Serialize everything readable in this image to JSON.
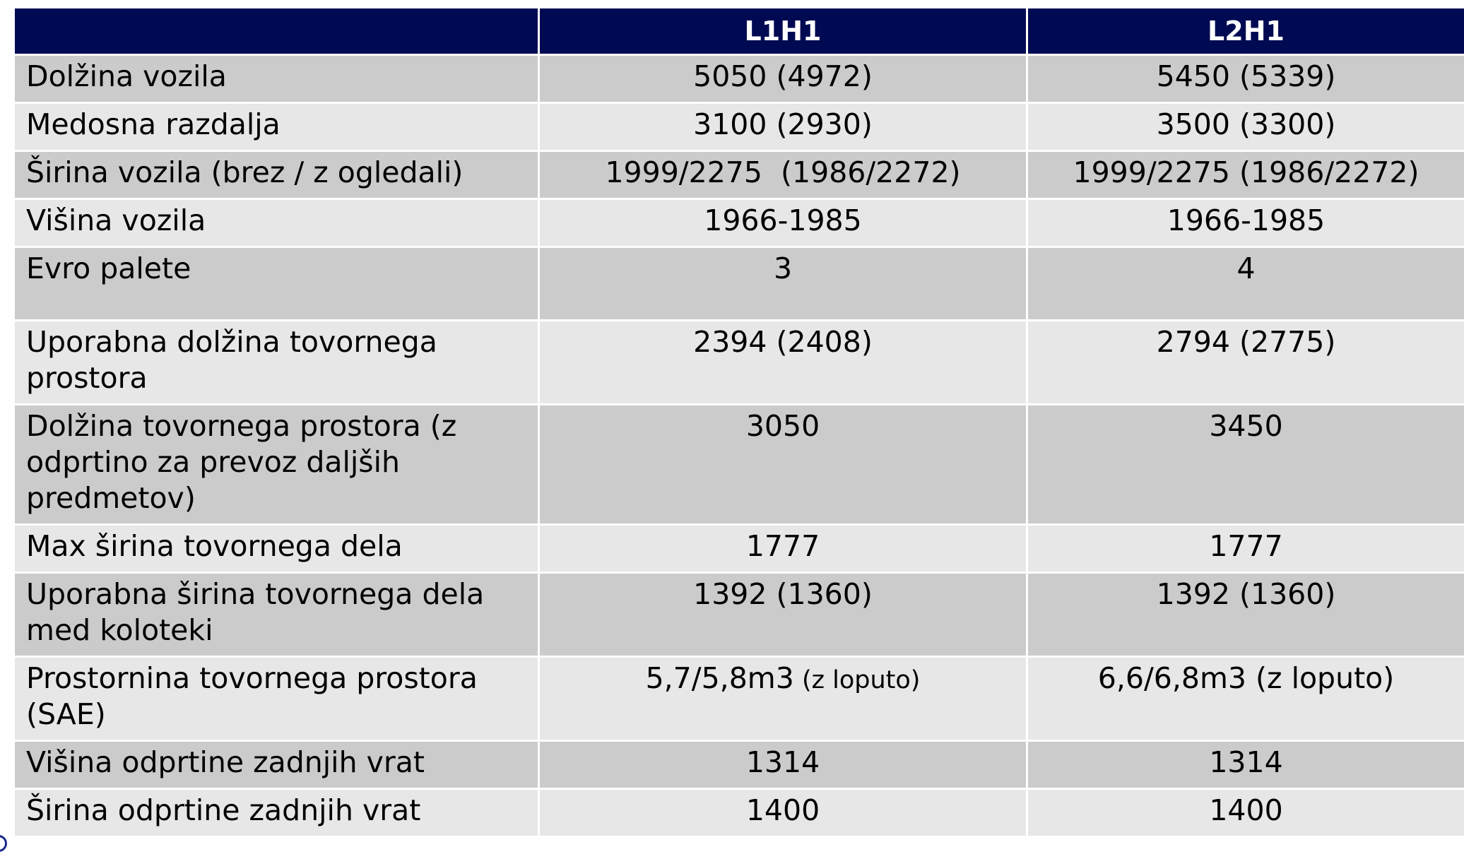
{
  "table": {
    "headers": [
      "",
      "L1H1",
      "L2H1"
    ],
    "rows": [
      {
        "label": "Dolžina vozila",
        "l1h1": "5050 (4972)",
        "l2h1": "5450 (5339)"
      },
      {
        "label": "Medosna razdalja",
        "l1h1": "3100 (2930)",
        "l2h1": "3500 (3300)"
      },
      {
        "label": "Širina vozila (brez / z ogledali)",
        "l1h1": "1999/2275  (1986/2272)",
        "l2h1": "1999/2275 (1986/2272)"
      },
      {
        "label": "Višina vozila",
        "l1h1": "1966-1985",
        "l2h1": "1966-1985"
      },
      {
        "label": "Evro palete",
        "l1h1": "3",
        "l2h1": "4"
      },
      {
        "label": "Uporabna dolžina tovornega prostora",
        "l1h1": "2394 (2408)",
        "l2h1": "2794 (2775)"
      },
      {
        "label": "Dolžina tovornega prostora (z odprtino za prevoz daljših predmetov)",
        "l1h1": "3050",
        "l2h1": "3450"
      },
      {
        "label": "Max širina tovornega dela",
        "l1h1": "1777",
        "l2h1": "1777"
      },
      {
        "label": "Uporabna širina tovornega dela med koloteki",
        "l1h1": "1392 (1360)",
        "l2h1": "1392 (1360)"
      },
      {
        "label": "Prostornina tovornega prostora (SAE)",
        "l1h1_main": "5,7/5,8m3",
        "l1h1_note": " (z loputo)",
        "l2h1": "6,6/6,8m3 (z loputo)"
      },
      {
        "label": "Višina odprtine zadnjih vrat",
        "l1h1": "1314",
        "l2h1": "1314"
      },
      {
        "label": "Širina odprtine zadnjih vrat",
        "l1h1": "1400",
        "l2h1": "1400"
      }
    ]
  },
  "colors": {
    "header_bg": "#000a52",
    "row_dark": "#cbcbcb",
    "row_light": "#e7e7e7"
  }
}
